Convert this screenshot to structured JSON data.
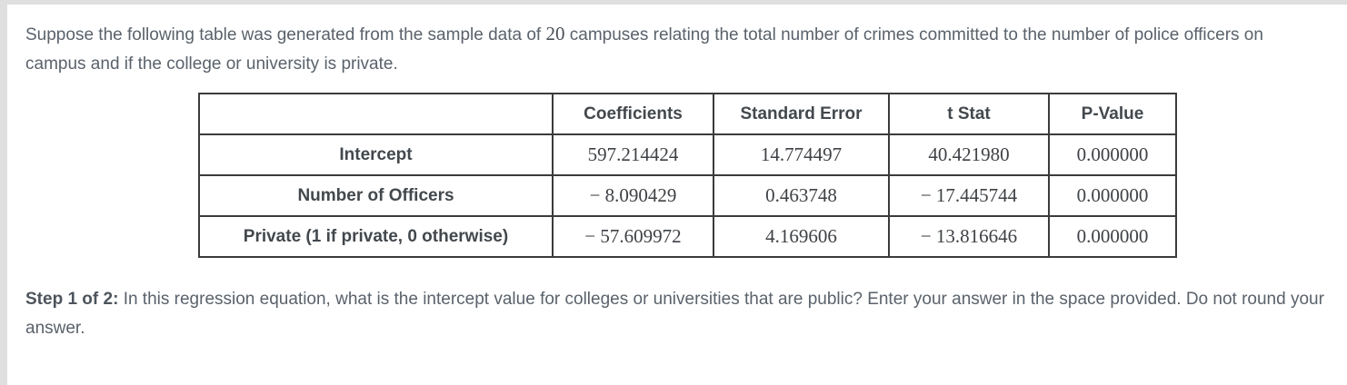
{
  "intro": {
    "text_before": "Suppose the following table was generated from the sample data of ",
    "sample_size": "20",
    "text_after": " campuses relating the total number of crimes committed to the number of police officers on campus and if the college or university is private."
  },
  "table": {
    "corner_label": "",
    "columns": [
      "Coefficients",
      "Standard Error",
      "t Stat",
      "P-Value"
    ],
    "rows": [
      {
        "label": "Intercept",
        "coefficient": "597.214424",
        "standard_error": "14.774497",
        "t_stat": "40.421980",
        "p_value": "0.000000"
      },
      {
        "label": "Number of Officers",
        "coefficient": "− 8.090429",
        "standard_error": "0.463748",
        "t_stat": "− 17.445744",
        "p_value": "0.000000"
      },
      {
        "label": "Private (1 if private, 0 otherwise)",
        "coefficient": "− 57.609972",
        "standard_error": "4.169606",
        "t_stat": "− 13.816646",
        "p_value": "0.000000"
      }
    ]
  },
  "step": {
    "label": "Step 1 of 2:",
    "text": "In this regression equation, what is the intercept value for colleges or universities that are public? Enter your answer in the space provided. Do not round your answer."
  }
}
